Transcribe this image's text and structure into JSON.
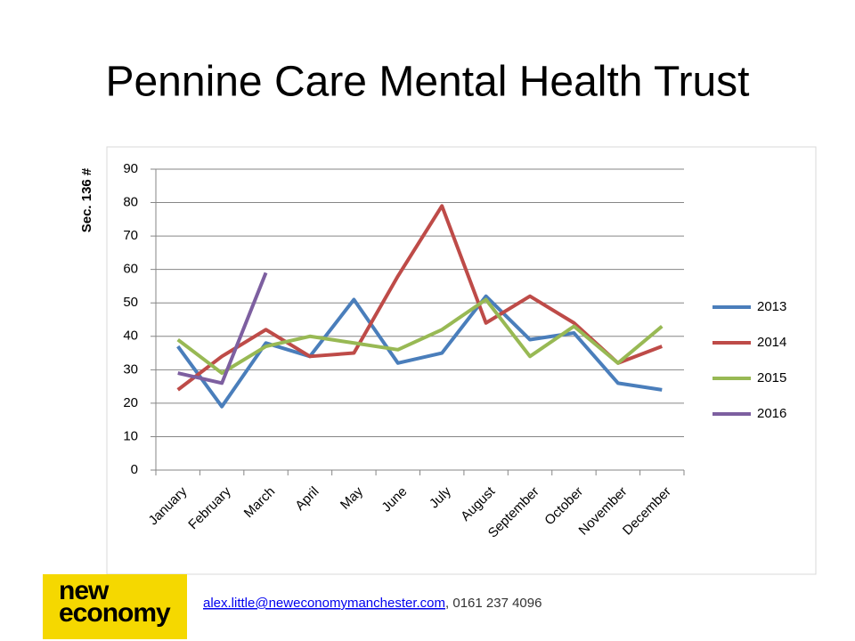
{
  "title": "Pennine Care Mental Health Trust",
  "chart_data": {
    "type": "line",
    "y_label": "Sec. 136 #",
    "categories": [
      "January",
      "February",
      "March",
      "April",
      "May",
      "June",
      "July",
      "August",
      "September",
      "October",
      "November",
      "December"
    ],
    "series": [
      {
        "name": "2013",
        "color": "#4a7ebb",
        "values": [
          37,
          19,
          38,
          34,
          51,
          32,
          35,
          52,
          39,
          41,
          26,
          24
        ]
      },
      {
        "name": "2014",
        "color": "#be4b48",
        "values": [
          24,
          34,
          42,
          34,
          35,
          58,
          79,
          44,
          52,
          44,
          32,
          37
        ]
      },
      {
        "name": "2015",
        "color": "#98b954",
        "values": [
          39,
          29,
          37,
          40,
          38,
          36,
          42,
          51,
          34,
          43,
          32,
          43
        ]
      },
      {
        "name": "2016",
        "color": "#7d5fa0",
        "values": [
          29,
          26,
          59,
          null,
          null,
          null,
          null,
          null,
          null,
          null,
          null,
          null
        ]
      }
    ],
    "ylim": [
      0,
      90
    ],
    "yticks": [
      0,
      10,
      20,
      30,
      40,
      50,
      60,
      70,
      80,
      90
    ],
    "grid": true,
    "legend": "right"
  },
  "footer": {
    "logo": [
      "new",
      "economy"
    ],
    "email": "alex.little@neweconomymanchester.com",
    "phone": ", 0161 237 4096"
  }
}
